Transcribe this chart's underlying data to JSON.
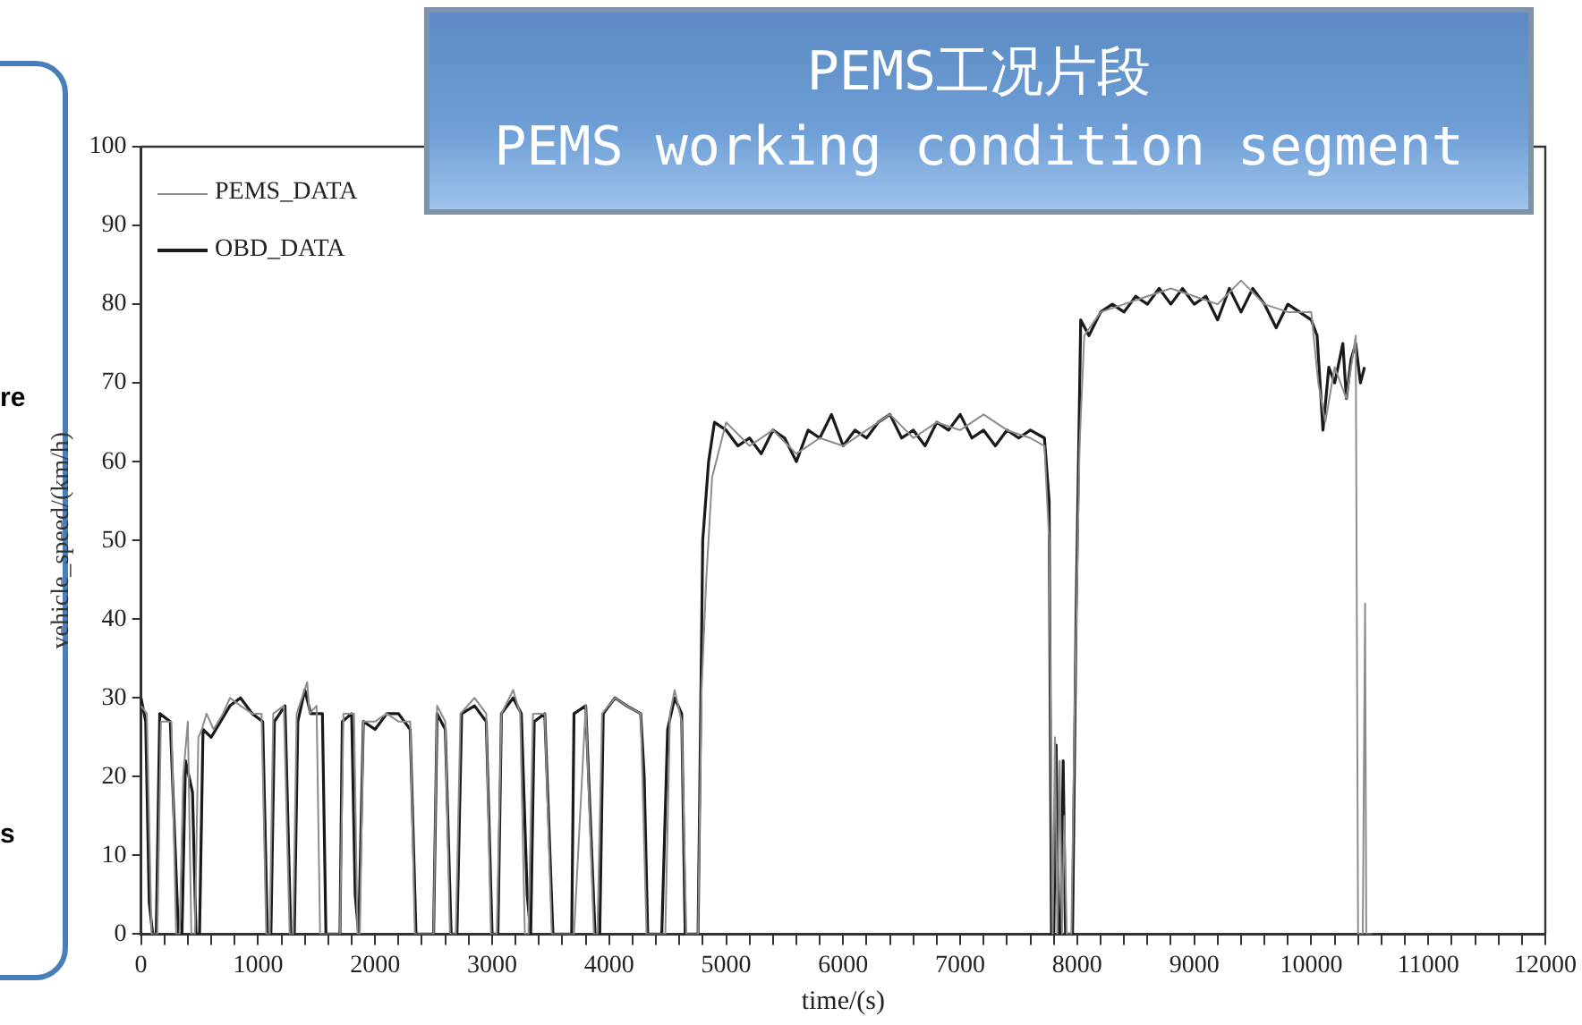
{
  "chart_data": {
    "type": "line",
    "title": "PEMS工况片段",
    "subtitle": "PEMS working condition segment",
    "xlabel": "time/(s)",
    "ylabel": "vehicle_speed/(km/h)",
    "annotations": [
      "re",
      "s"
    ],
    "legend": "top left",
    "xlim": [
      0,
      12000
    ],
    "ylim": [
      0,
      100
    ],
    "xticks": [
      0,
      {
        "value": 200,
        "label": null
      },
      {
        "value": 400,
        "label": null
      },
      {
        "value": 600,
        "label": null
      },
      {
        "value": 800,
        "label": null
      },
      1000,
      {
        "value": 1200,
        "label": null
      },
      {
        "value": 1400,
        "label": null
      },
      {
        "value": 1600,
        "label": null
      },
      {
        "value": 1800,
        "label": null
      },
      2000,
      {
        "value": 2200,
        "label": null
      },
      {
        "value": 2400,
        "label": null
      },
      {
        "value": 2600,
        "label": null
      },
      {
        "value": 2800,
        "label": null
      },
      3000,
      {
        "value": 3200,
        "label": null
      },
      {
        "value": 3400,
        "label": null
      },
      {
        "value": 3600,
        "label": null
      },
      {
        "value": 3800,
        "label": null
      },
      4000,
      {
        "value": 4200,
        "label": null
      },
      {
        "value": 4400,
        "label": null
      },
      {
        "value": 4600,
        "label": null
      },
      {
        "value": 4800,
        "label": null
      },
      5000,
      {
        "value": 5200,
        "label": null
      },
      {
        "value": 5400,
        "label": null
      },
      {
        "value": 5600,
        "label": null
      },
      {
        "value": 5800,
        "label": null
      },
      6000,
      {
        "value": 6200,
        "label": null
      },
      {
        "value": 6400,
        "label": null
      },
      {
        "value": 6600,
        "label": null
      },
      {
        "value": 6800,
        "label": null
      },
      7000,
      {
        "value": 7200,
        "label": null
      },
      {
        "value": 7400,
        "label": null
      },
      {
        "value": 7600,
        "label": null
      },
      {
        "value": 7800,
        "label": null
      },
      8000,
      {
        "value": 8200,
        "label": null
      },
      {
        "value": 8400,
        "label": null
      },
      {
        "value": 8600,
        "label": null
      },
      {
        "value": 8800,
        "label": null
      },
      9000,
      {
        "value": 9200,
        "label": null
      },
      {
        "value": 9400,
        "label": null
      },
      {
        "value": 9600,
        "label": null
      },
      {
        "value": 9800,
        "label": null
      },
      10000,
      {
        "value": 10200,
        "label": null
      },
      {
        "value": 10400,
        "label": null
      },
      {
        "value": 10600,
        "label": null
      },
      {
        "value": 10800,
        "label": null
      },
      11000,
      {
        "value": 11200,
        "label": null
      },
      {
        "value": 11400,
        "label": null
      },
      {
        "value": 11600,
        "label": null
      },
      {
        "value": 11800,
        "label": null
      },
      12000
    ],
    "yticks": [
      0,
      10,
      20,
      30,
      40,
      50,
      60,
      70,
      80,
      90,
      100
    ],
    "series": [
      {
        "name": "PEMS_DATA",
        "color": "#8c8c8c",
        "x": [
          0,
          50,
          90,
          110,
          140,
          170,
          260,
          300,
          330,
          360,
          400,
          430,
          460,
          490,
          520,
          560,
          620,
          700,
          760,
          850,
          950,
          1030,
          1070,
          1100,
          1130,
          1220,
          1270,
          1300,
          1330,
          1420,
          1440,
          1500,
          1530,
          1560,
          1600,
          1700,
          1730,
          1820,
          1850,
          1870,
          1900,
          2000,
          2100,
          2200,
          2300,
          2340,
          2400,
          2500,
          2530,
          2600,
          2640,
          2690,
          2730,
          2850,
          2950,
          2990,
          3040,
          3080,
          3180,
          3240,
          3280,
          3310,
          3350,
          3450,
          3510,
          3560,
          3600,
          3700,
          3800,
          3870,
          3900,
          3940,
          4050,
          4150,
          4270,
          4320,
          4360,
          4480,
          4520,
          4560,
          4620,
          4660,
          4720,
          4760,
          4790,
          4830,
          4880,
          5000,
          5200,
          5400,
          5600,
          5800,
          6000,
          6200,
          6400,
          6600,
          6800,
          7000,
          7200,
          7400,
          7600,
          7720,
          7760,
          7790,
          7810,
          7830,
          7850,
          7870,
          7890,
          7910,
          7950,
          7980,
          8020,
          8060,
          8200,
          8400,
          8600,
          8800,
          9000,
          9200,
          9400,
          9600,
          9800,
          10000,
          10060,
          10120,
          10200,
          10300,
          10380,
          10400,
          10440,
          10460,
          10470,
          10490,
          10520
        ],
        "values": [
          29,
          28,
          0,
          0,
          0,
          27,
          27,
          0,
          0,
          20,
          27,
          0,
          0,
          25,
          26,
          28,
          26,
          28,
          30,
          29,
          28,
          28,
          0,
          0,
          28,
          29,
          0,
          0,
          28,
          32,
          28,
          29,
          0,
          0,
          0,
          0,
          28,
          28,
          0,
          0,
          27,
          27,
          28,
          27,
          27,
          0,
          0,
          0,
          29,
          27,
          0,
          0,
          28,
          30,
          28,
          0,
          0,
          28,
          31,
          28,
          0,
          0,
          28,
          28,
          0,
          0,
          0,
          0,
          29,
          0,
          0,
          28,
          30,
          29,
          28,
          0,
          0,
          0,
          28,
          31,
          27,
          0,
          0,
          0,
          31,
          45,
          58,
          65,
          62,
          64,
          61,
          63,
          62,
          64,
          66,
          63,
          65,
          64,
          66,
          64,
          63,
          62,
          50,
          0,
          25,
          0,
          22,
          0,
          15,
          0,
          0,
          30,
          62,
          76,
          79,
          80,
          81,
          82,
          81,
          80,
          83,
          80,
          79,
          79,
          70,
          65,
          72,
          68,
          76,
          0,
          0,
          42,
          0,
          0,
          0
        ]
      },
      {
        "name": "OBD_DATA",
        "color": "#1a1a1a",
        "x": [
          0,
          40,
          70,
          100,
          130,
          160,
          250,
          320,
          350,
          380,
          440,
          470,
          500,
          530,
          600,
          680,
          760,
          850,
          950,
          1040,
          1080,
          1110,
          1140,
          1230,
          1280,
          1310,
          1340,
          1400,
          1450,
          1550,
          1580,
          1700,
          1720,
          1800,
          1830,
          1860,
          1900,
          2000,
          2100,
          2200,
          2300,
          2350,
          2500,
          2530,
          2600,
          2650,
          2700,
          2740,
          2850,
          2950,
          3000,
          3050,
          3080,
          3180,
          3250,
          3300,
          3330,
          3360,
          3450,
          3520,
          3680,
          3700,
          3800,
          3880,
          3920,
          3950,
          4050,
          4150,
          4270,
          4300,
          4330,
          4450,
          4500,
          4560,
          4620,
          4650,
          4760,
          4800,
          4850,
          4900,
          5000,
          5100,
          5200,
          5300,
          5400,
          5500,
          5600,
          5700,
          5800,
          5900,
          6000,
          6100,
          6200,
          6300,
          6400,
          6500,
          6600,
          6700,
          6800,
          6900,
          7000,
          7100,
          7200,
          7300,
          7400,
          7500,
          7600,
          7720,
          7760,
          7780,
          7800,
          7820,
          7840,
          7860,
          7880,
          7900,
          7960,
          7990,
          8030,
          8100,
          8200,
          8300,
          8400,
          8500,
          8600,
          8700,
          8800,
          8900,
          9000,
          9100,
          9200,
          9300,
          9400,
          9500,
          9600,
          9700,
          9800,
          9900,
          10000,
          10050,
          10100,
          10150,
          10200,
          10270,
          10300,
          10340,
          10380,
          10420,
          10455
        ],
        "values": [
          30,
          27,
          4,
          0,
          0,
          28,
          27,
          0,
          0,
          22,
          18,
          0,
          0,
          26,
          25,
          27,
          29,
          30,
          28,
          27,
          0,
          0,
          27,
          29,
          0,
          0,
          27,
          31,
          28,
          28,
          0,
          0,
          27,
          28,
          5,
          0,
          27,
          26,
          28,
          28,
          26,
          0,
          0,
          28,
          26,
          0,
          0,
          28,
          29,
          27,
          0,
          0,
          28,
          30,
          28,
          5,
          0,
          27,
          28,
          0,
          0,
          28,
          29,
          0,
          0,
          28,
          30,
          29,
          28,
          20,
          0,
          0,
          26,
          30,
          28,
          0,
          0,
          50,
          60,
          65,
          64,
          62,
          63,
          61,
          64,
          63,
          60,
          64,
          63,
          66,
          62,
          64,
          63,
          65,
          66,
          63,
          64,
          62,
          65,
          64,
          66,
          63,
          64,
          62,
          64,
          63,
          64,
          63,
          55,
          0,
          0,
          24,
          0,
          0,
          22,
          0,
          0,
          40,
          78,
          76,
          79,
          80,
          79,
          81,
          80,
          82,
          80,
          82,
          80,
          81,
          78,
          82,
          79,
          82,
          80,
          77,
          80,
          79,
          78,
          76,
          64,
          72,
          70,
          75,
          68,
          73,
          75,
          70,
          72
        ]
      }
    ]
  }
}
